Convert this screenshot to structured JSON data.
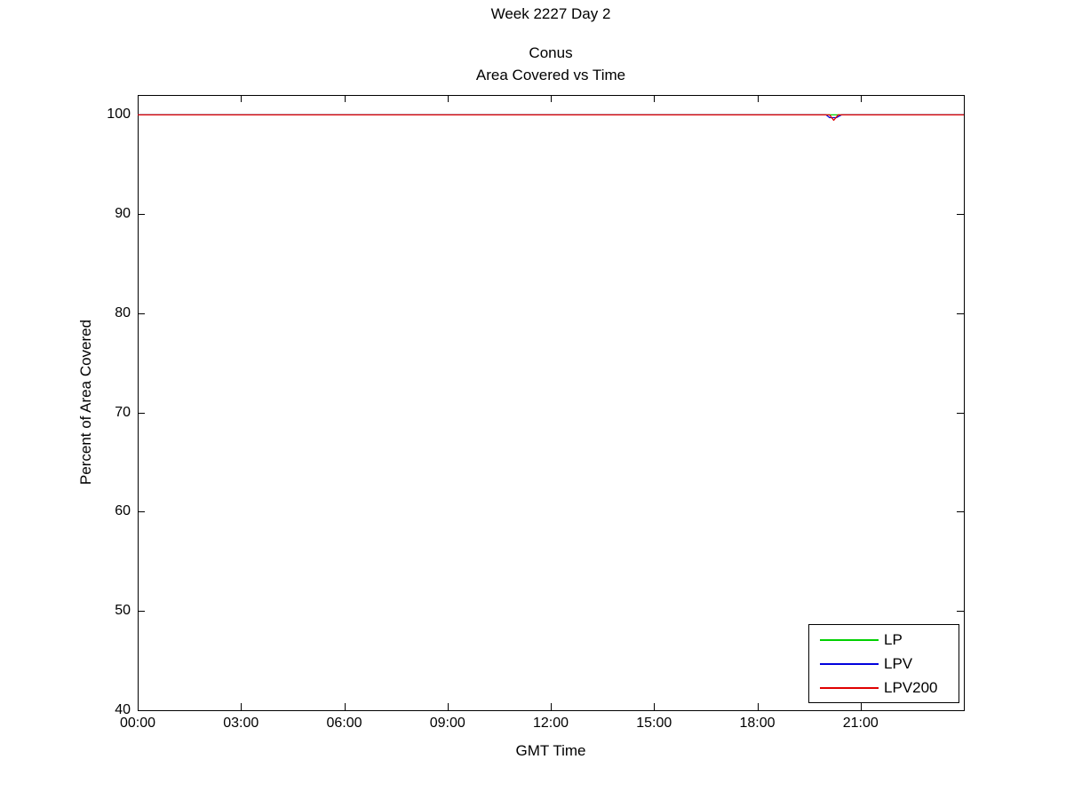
{
  "figure": {
    "background_color": "#ffffff",
    "axis_color": "#000000",
    "text_color": "#000000"
  },
  "chart_data": {
    "type": "line",
    "suptitle": "Week 2227 Day 2",
    "title": "Conus",
    "subtitle": "Area Covered vs Time",
    "xlabel": "GMT Time",
    "ylabel": "Percent of Area Covered",
    "x_unit": "hours",
    "xlim": [
      0,
      24
    ],
    "ylim": [
      40,
      102
    ],
    "grid": false,
    "xticks": [
      {
        "value": 0,
        "label": "00:00"
      },
      {
        "value": 3,
        "label": "03:00"
      },
      {
        "value": 6,
        "label": "06:00"
      },
      {
        "value": 9,
        "label": "09:00"
      },
      {
        "value": 12,
        "label": "12:00"
      },
      {
        "value": 15,
        "label": "15:00"
      },
      {
        "value": 18,
        "label": "18:00"
      },
      {
        "value": 21,
        "label": "21:00"
      }
    ],
    "yticks": [
      {
        "value": 40,
        "label": "40"
      },
      {
        "value": 50,
        "label": "50"
      },
      {
        "value": 60,
        "label": "60"
      },
      {
        "value": 70,
        "label": "70"
      },
      {
        "value": 80,
        "label": "80"
      },
      {
        "value": 90,
        "label": "90"
      },
      {
        "value": 100,
        "label": "100"
      }
    ],
    "legend": {
      "position": "bottom-right",
      "entries": [
        "LP",
        "LPV",
        "LPV200"
      ]
    },
    "series": [
      {
        "name": "LP",
        "color": "#00d000",
        "points": [
          [
            0,
            100
          ],
          [
            24,
            100
          ]
        ]
      },
      {
        "name": "LPV",
        "color": "#0000dd",
        "points": [
          [
            0,
            100
          ],
          [
            20.0,
            100
          ],
          [
            20.1,
            99.72
          ],
          [
            20.3,
            99.72
          ],
          [
            20.45,
            100
          ],
          [
            24,
            100
          ]
        ]
      },
      {
        "name": "LPV200",
        "color": "#e00000",
        "points": [
          [
            0,
            100
          ],
          [
            20.1,
            100
          ],
          [
            20.22,
            99.45
          ],
          [
            20.35,
            100
          ],
          [
            24,
            100
          ]
        ]
      }
    ]
  }
}
